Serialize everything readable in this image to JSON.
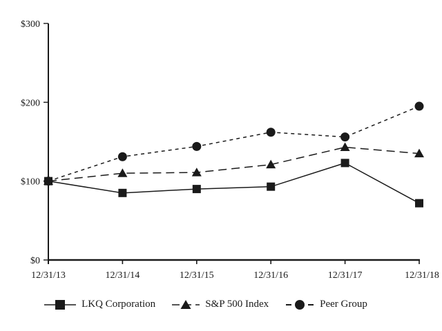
{
  "chart_data": {
    "type": "line",
    "title": "",
    "categories": [
      "12/31/13",
      "12/31/14",
      "12/31/15",
      "12/31/16",
      "12/31/17",
      "12/31/18"
    ],
    "series": [
      {
        "name": "LKQ Corporation",
        "marker": "square",
        "line": "solid",
        "values": [
          100,
          85,
          90,
          93,
          123,
          72
        ]
      },
      {
        "name": "S&P 500 Index",
        "marker": "triangle",
        "line": "long-dash",
        "values": [
          100,
          110,
          111,
          121,
          143,
          135
        ]
      },
      {
        "name": "Peer Group",
        "marker": "circle",
        "line": "short-dash",
        "values": [
          100,
          131,
          144,
          162,
          156,
          195
        ]
      }
    ],
    "ylim": [
      0,
      300
    ],
    "y_ticks": [
      0,
      100,
      200,
      300
    ],
    "y_tick_labels": [
      "$0",
      "$100",
      "$200",
      "$300"
    ],
    "xlabel": "",
    "ylabel": "",
    "grid": false,
    "legend_position": "bottom",
    "colors": {
      "line": "#1a1a1a",
      "background": "#ffffff"
    }
  }
}
